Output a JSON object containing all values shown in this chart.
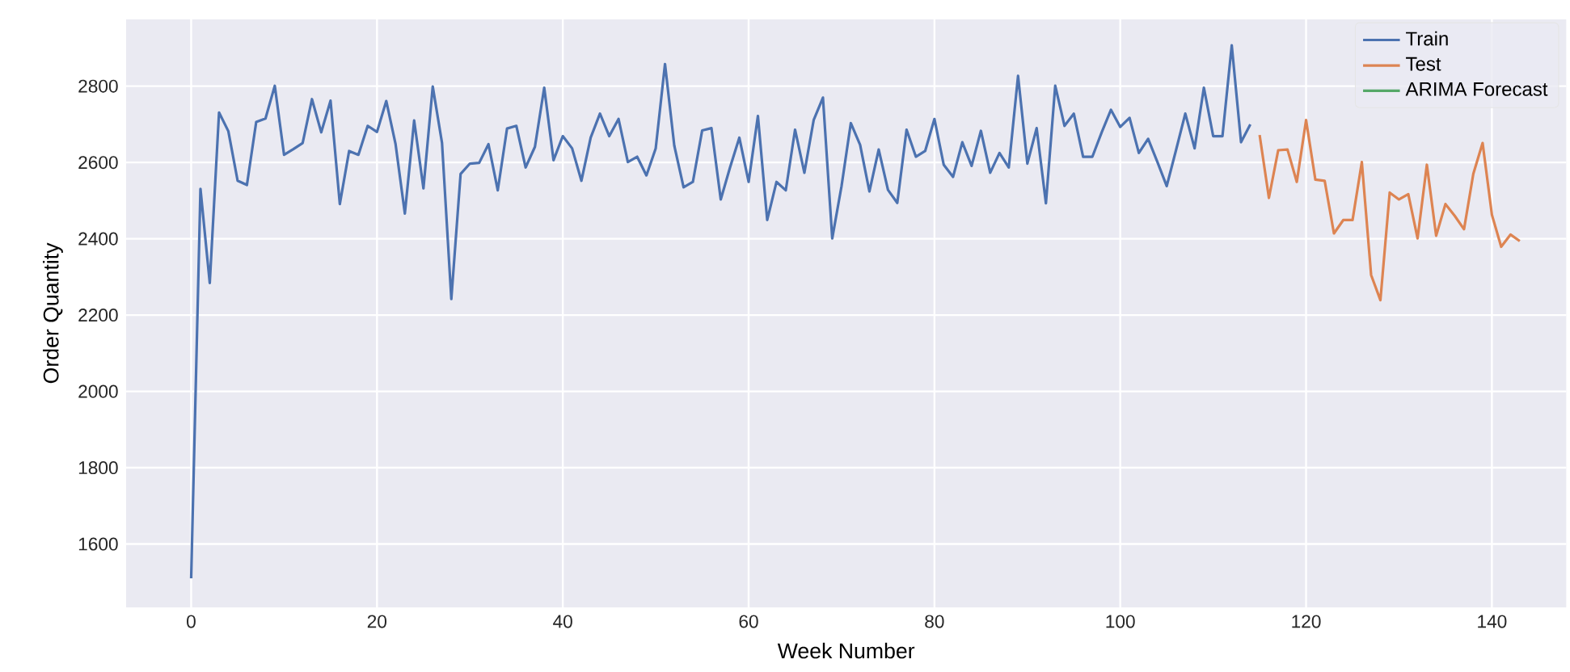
{
  "chart_data": {
    "type": "line",
    "xlabel": "Week Number",
    "ylabel": "Order Quantity",
    "xlim": [
      -7,
      148
    ],
    "ylim": [
      1434,
      2975
    ],
    "xticks": [
      0,
      20,
      40,
      60,
      80,
      100,
      120,
      140
    ],
    "yticks": [
      1600,
      1800,
      2000,
      2200,
      2400,
      2600,
      2800
    ],
    "grid": true,
    "legend": "top right",
    "marker": "none",
    "line_style": "solid",
    "series": [
      {
        "name": "Train",
        "color": "#4c72b0",
        "x": [
          0,
          1,
          2,
          3,
          4,
          5,
          6,
          7,
          8,
          9,
          10,
          11,
          12,
          13,
          14,
          15,
          16,
          17,
          18,
          19,
          20,
          21,
          22,
          23,
          24,
          25,
          26,
          27,
          28,
          29,
          30,
          31,
          32,
          33,
          34,
          35,
          36,
          37,
          38,
          39,
          40,
          41,
          42,
          43,
          44,
          45,
          46,
          47,
          48,
          49,
          50,
          51,
          52,
          53,
          54,
          55,
          56,
          57,
          58,
          59,
          60,
          61,
          62,
          63,
          64,
          65,
          66,
          67,
          68,
          69,
          70,
          71,
          72,
          73,
          74,
          75,
          76,
          77,
          78,
          79,
          80,
          81,
          82,
          83,
          84,
          85,
          86,
          87,
          88,
          89,
          90,
          91,
          92,
          93,
          94,
          95,
          96,
          97,
          98,
          99,
          100,
          101,
          102,
          103,
          104,
          105,
          106,
          107,
          108,
          109,
          110,
          111,
          112,
          113,
          114
        ],
        "values": [
          1510,
          2531,
          2284,
          2731,
          2682,
          2552,
          2541,
          2706,
          2715,
          2801,
          2620,
          2635,
          2651,
          2766,
          2679,
          2762,
          2491,
          2630,
          2620,
          2696,
          2680,
          2761,
          2648,
          2466,
          2710,
          2532,
          2799,
          2651,
          2242,
          2570,
          2597,
          2599,
          2648,
          2527,
          2689,
          2696,
          2587,
          2641,
          2796,
          2606,
          2669,
          2637,
          2552,
          2665,
          2728,
          2669,
          2714,
          2601,
          2615,
          2566,
          2637,
          2858,
          2644,
          2535,
          2549,
          2684,
          2690,
          2503,
          2587,
          2665,
          2549,
          2722,
          2449,
          2549,
          2527,
          2686,
          2573,
          2711,
          2770,
          2401,
          2538,
          2703,
          2646,
          2524,
          2634,
          2528,
          2494,
          2686,
          2615,
          2630,
          2714,
          2594,
          2562,
          2653,
          2591,
          2683,
          2573,
          2625,
          2587,
          2827,
          2597,
          2690,
          2493,
          2801,
          2696,
          2728,
          2615,
          2615,
          2679,
          2738,
          2693,
          2717,
          2625,
          2662,
          2601,
          2538,
          2632,
          2728,
          2637,
          2796,
          2669,
          2669,
          2907,
          2653,
          2700
        ]
      },
      {
        "name": "Test",
        "color": "#dd8452",
        "x": [
          115,
          116,
          117,
          118,
          119,
          120,
          121,
          122,
          123,
          124,
          125,
          126,
          127,
          128,
          129,
          130,
          131,
          132,
          133,
          134,
          135,
          136,
          137,
          138,
          139,
          140,
          141,
          142,
          143
        ],
        "values": [
          2672,
          2507,
          2632,
          2634,
          2549,
          2711,
          2555,
          2552,
          2414,
          2449,
          2449,
          2601,
          2305,
          2239,
          2521,
          2503,
          2517,
          2401,
          2594,
          2408,
          2491,
          2460,
          2425,
          2570,
          2651,
          2463,
          2379,
          2411,
          2394
        ]
      },
      {
        "name": "ARIMA Forecast",
        "color": "#55a868"
      }
    ]
  }
}
